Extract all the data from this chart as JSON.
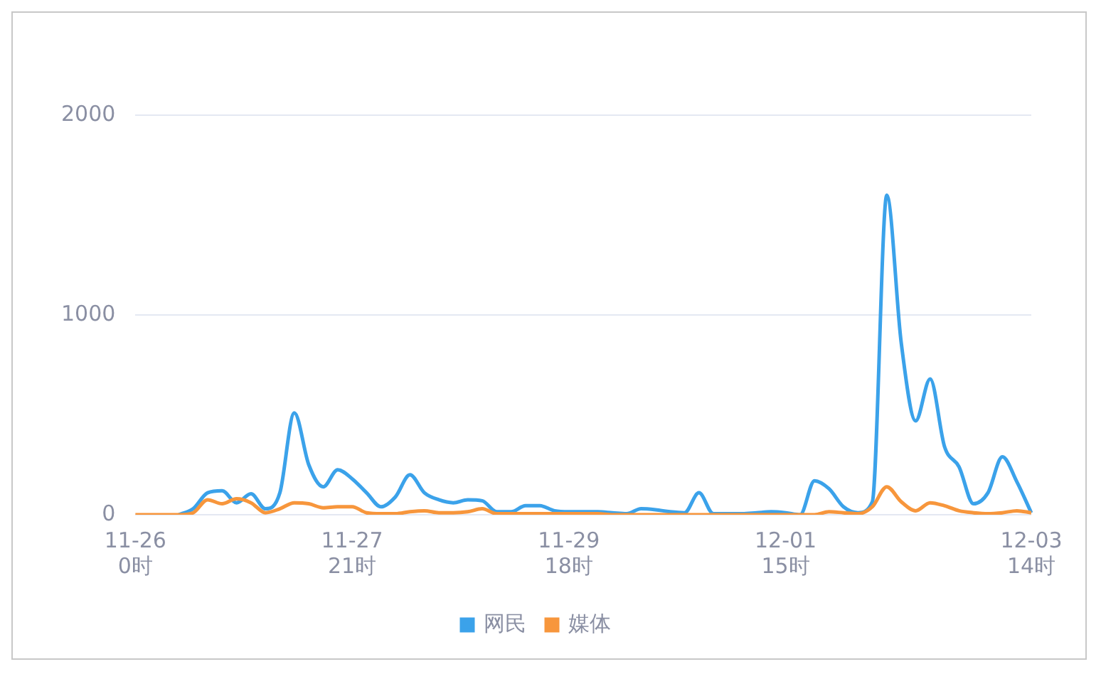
{
  "chart_data": {
    "type": "line",
    "categories": [
      "11-26\n0时",
      null,
      null,
      null,
      null,
      null,
      null,
      null,
      null,
      null,
      null,
      null,
      null,
      null,
      null,
      "11-27\n21时",
      null,
      null,
      null,
      null,
      null,
      null,
      null,
      null,
      null,
      null,
      null,
      null,
      null,
      null,
      "11-29\n18时",
      null,
      null,
      null,
      null,
      null,
      null,
      null,
      null,
      null,
      null,
      null,
      null,
      null,
      null,
      "12-01\n15时",
      null,
      null,
      null,
      null,
      null,
      null,
      null,
      null,
      null,
      null,
      null,
      null,
      null,
      null,
      null,
      null,
      "12-03\n14时"
    ],
    "series": [
      {
        "name": "网民",
        "color": "#3ba2ea",
        "values": [
          null,
          null,
          null,
          0,
          30,
          110,
          120,
          60,
          105,
          30,
          110,
          510,
          250,
          140,
          225,
          180,
          110,
          40,
          90,
          200,
          110,
          75,
          60,
          75,
          70,
          15,
          15,
          45,
          45,
          20,
          15,
          15,
          15,
          10,
          5,
          30,
          25,
          15,
          10,
          110,
          5,
          5,
          5,
          10,
          15,
          10,
          0,
          170,
          130,
          40,
          10,
          65,
          1600,
          860,
          470,
          680,
          340,
          240,
          55,
          110,
          290,
          165,
          10
        ]
      },
      {
        "name": "媒体",
        "color": "#f7963c",
        "values": [
          0,
          0,
          0,
          0,
          10,
          75,
          55,
          80,
          60,
          10,
          30,
          60,
          55,
          35,
          40,
          40,
          10,
          5,
          5,
          15,
          20,
          10,
          10,
          15,
          30,
          5,
          5,
          5,
          5,
          5,
          5,
          5,
          5,
          0,
          0,
          0,
          0,
          0,
          0,
          0,
          0,
          0,
          0,
          0,
          0,
          0,
          0,
          0,
          15,
          10,
          5,
          40,
          140,
          65,
          20,
          60,
          45,
          20,
          10,
          5,
          10,
          20,
          10
        ]
      }
    ],
    "ylim": [
      0,
      2000
    ],
    "yticks": [
      0,
      1000,
      2000
    ],
    "grid": "y",
    "legend": "bottom",
    "marker": "none",
    "line_style": "solid"
  }
}
